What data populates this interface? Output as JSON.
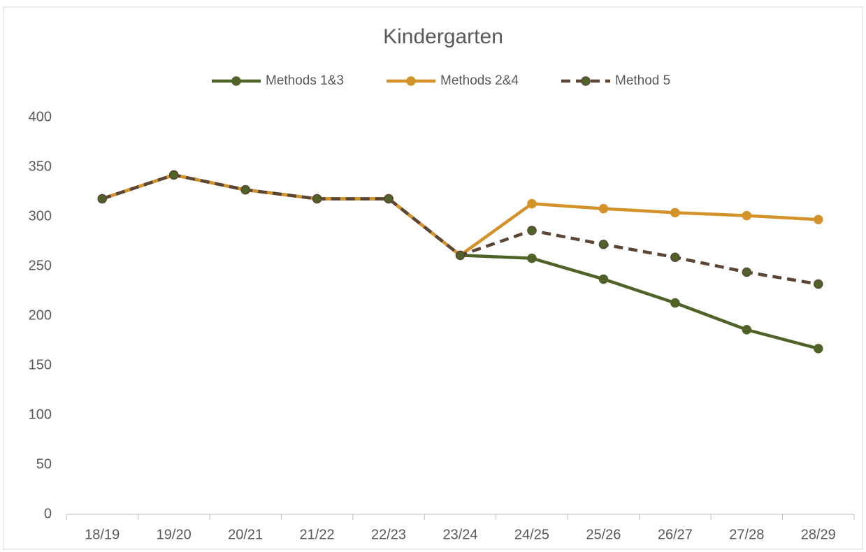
{
  "chart_data": {
    "type": "line",
    "title": "Kindergarten",
    "categories": [
      "18/19",
      "19/20",
      "20/21",
      "21/22",
      "22/23",
      "23/24",
      "24/25",
      "25/26",
      "26/27",
      "27/28",
      "28/29"
    ],
    "series": [
      {
        "name": "Methods 1&3",
        "color": "#4f6228",
        "style": "solid",
        "values": [
          318,
          342,
          327,
          318,
          318,
          261,
          258,
          237,
          213,
          186,
          167
        ]
      },
      {
        "name": "Methods 2&4",
        "color": "#d4922a",
        "style": "solid",
        "values": [
          318,
          342,
          327,
          318,
          318,
          261,
          313,
          308,
          304,
          301,
          297
        ]
      },
      {
        "name": "Method 5",
        "color": "#5b4636",
        "marker_color": "#4f6228",
        "style": "dashed",
        "values": [
          318,
          342,
          327,
          318,
          318,
          261,
          286,
          272,
          259,
          244,
          232
        ]
      }
    ],
    "ylim": [
      0,
      400
    ],
    "yticks": [
      0,
      50,
      100,
      150,
      200,
      250,
      300,
      350,
      400
    ],
    "grid": false,
    "legend": "top"
  }
}
